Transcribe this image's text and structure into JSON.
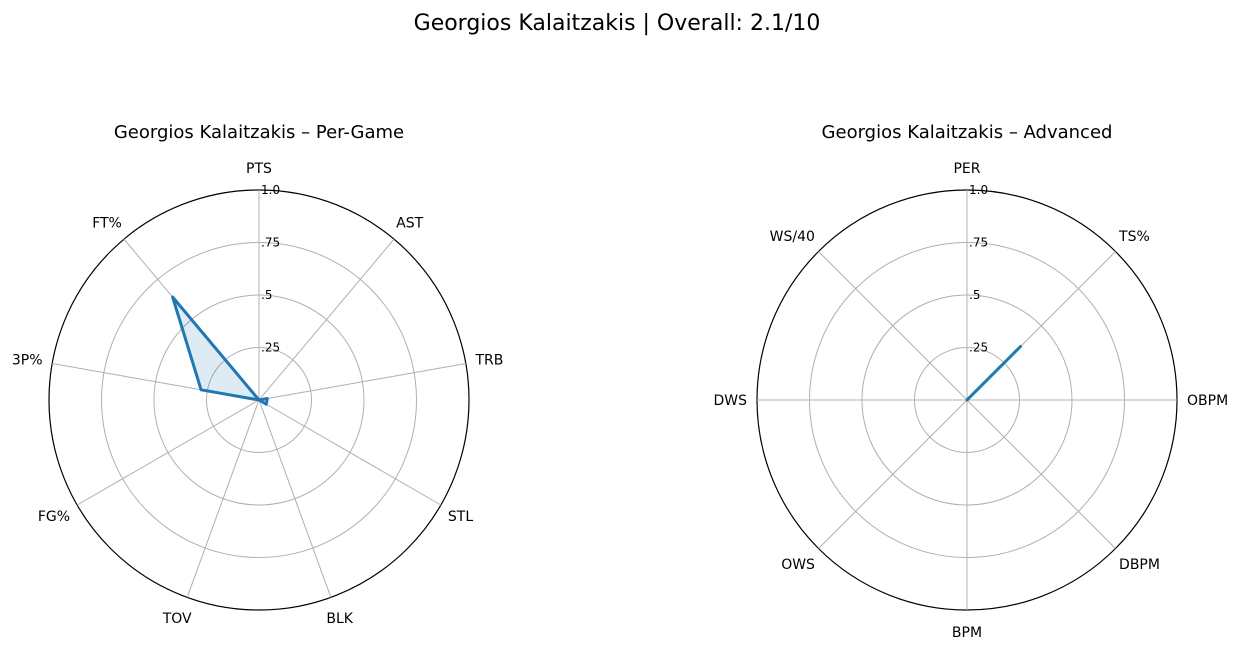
{
  "figure_title": "Georgios Kalaitzakis | Overall: 2.1/10",
  "colors": {
    "series": "#1f77b4",
    "grid": "#b0b0b0",
    "frame": "#000000"
  },
  "chart_data": [
    {
      "type": "radar",
      "title": "Georgios Kalaitzakis – Per-Game",
      "categories": [
        "PTS",
        "AST",
        "TRB",
        "STL",
        "BLK",
        "TOV",
        "FG%",
        "3P%",
        "FT%"
      ],
      "series": [
        {
          "values": [
            0.0,
            0.0,
            0.04,
            0.04,
            0.0,
            0.0,
            0.0,
            0.28,
            0.64
          ]
        }
      ],
      "rlim": [
        0,
        1
      ],
      "r_ticks": [
        0.25,
        0.5,
        0.75,
        1.0
      ],
      "r_tick_labels": [
        ".25",
        ".5",
        ".75",
        "1.0"
      ],
      "filled": true,
      "grid": true
    },
    {
      "type": "radar",
      "title": "Georgios Kalaitzakis – Advanced",
      "categories": [
        "PER",
        "TS%",
        "OBPM",
        "DBPM",
        "BPM",
        "OWS",
        "DWS",
        "WS/40"
      ],
      "series": [
        {
          "values": [
            0.0,
            0.36,
            0.0,
            0.0,
            0.0,
            0.0,
            0.0,
            0.0
          ]
        }
      ],
      "rlim": [
        0,
        1
      ],
      "r_ticks": [
        0.25,
        0.5,
        0.75,
        1.0
      ],
      "r_tick_labels": [
        ".25",
        ".5",
        ".75",
        "1.0"
      ],
      "filled": false,
      "grid": true
    }
  ]
}
